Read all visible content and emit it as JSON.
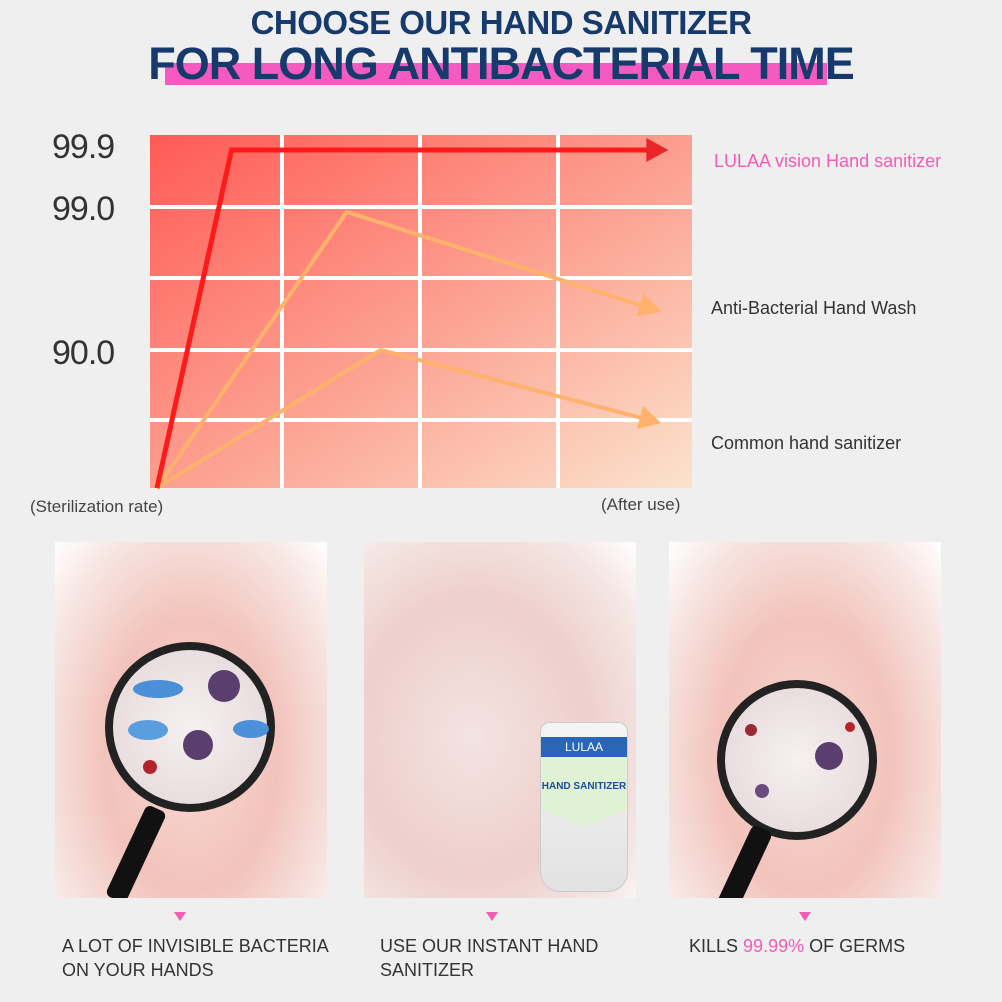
{
  "header": {
    "line1": "CHOOSE OUR HAND SANITIZER",
    "line2": "FOR LONG ANTIBACTERIAL TIME",
    "highlight_color": "#f55ac0",
    "text_color": "#163a6b"
  },
  "chart_data": {
    "type": "line",
    "ylabel": "(Sterilization rate)",
    "xlabel": "(After use)",
    "y_ticks": [
      "99.9",
      "99.0",
      "90.0"
    ],
    "y_scale": "non-linear (ordinal levels)",
    "grid": true,
    "legend_placement": "right",
    "series": [
      {
        "name": "LULAA vision Hand sanitizer",
        "color": "#ff1a1a",
        "label_color": "#f35bb5",
        "points": [
          [
            0,
            0
          ],
          [
            0.55,
            99.9
          ],
          [
            3.7,
            99.9
          ]
        ]
      },
      {
        "name": "Anti-Bacterial Hand Wash",
        "color": "#ffb26b",
        "label_color": "#333333",
        "points": [
          [
            0,
            0
          ],
          [
            1.4,
            99.0
          ],
          [
            3.65,
            92.7
          ]
        ]
      },
      {
        "name": "Common hand sanitizer",
        "color": "#ffb26b",
        "label_color": "#333333",
        "points": [
          [
            0,
            0
          ],
          [
            1.65,
            90.0
          ],
          [
            3.65,
            44
          ]
        ]
      }
    ]
  },
  "panels": [
    {
      "caption_lines": [
        "A LOT OF INVISIBLE BACTERIA",
        "ON YOUR HANDS"
      ]
    },
    {
      "caption_lines": [
        "USE OUR INSTANT HAND",
        "SANITIZER"
      ],
      "product": {
        "brand": "LULAA",
        "name": "HAND SANITIZER"
      }
    },
    {
      "caption_pre": "KILLS ",
      "caption_highlight": "99.99%",
      "caption_post": " OF GERMS"
    }
  ]
}
